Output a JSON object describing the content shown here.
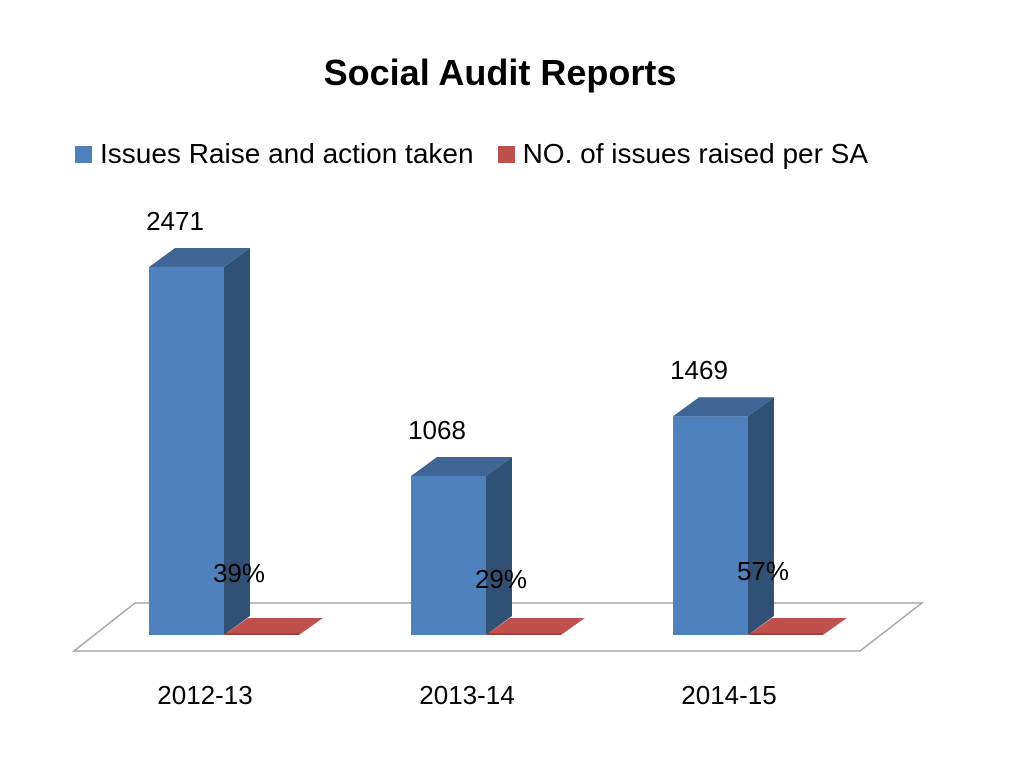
{
  "chart_data": {
    "type": "bar",
    "title": "Social Audit Reports",
    "categories": [
      "2012-13",
      "2013-14",
      "2014-15"
    ],
    "series": [
      {
        "name": "Issues Raise and action taken",
        "values": [
          2471,
          1068,
          1469
        ],
        "labels": [
          "2471",
          "1068",
          "1469"
        ],
        "color": "#4F81BD"
      },
      {
        "name": "NO. of issues raised per SA",
        "values": [
          0.39,
          0.29,
          0.57
        ],
        "labels": [
          "39%",
          "29%",
          "57%"
        ],
        "color": "#C0504D"
      }
    ],
    "three_d": true,
    "legend_position": "top",
    "grid": false
  }
}
